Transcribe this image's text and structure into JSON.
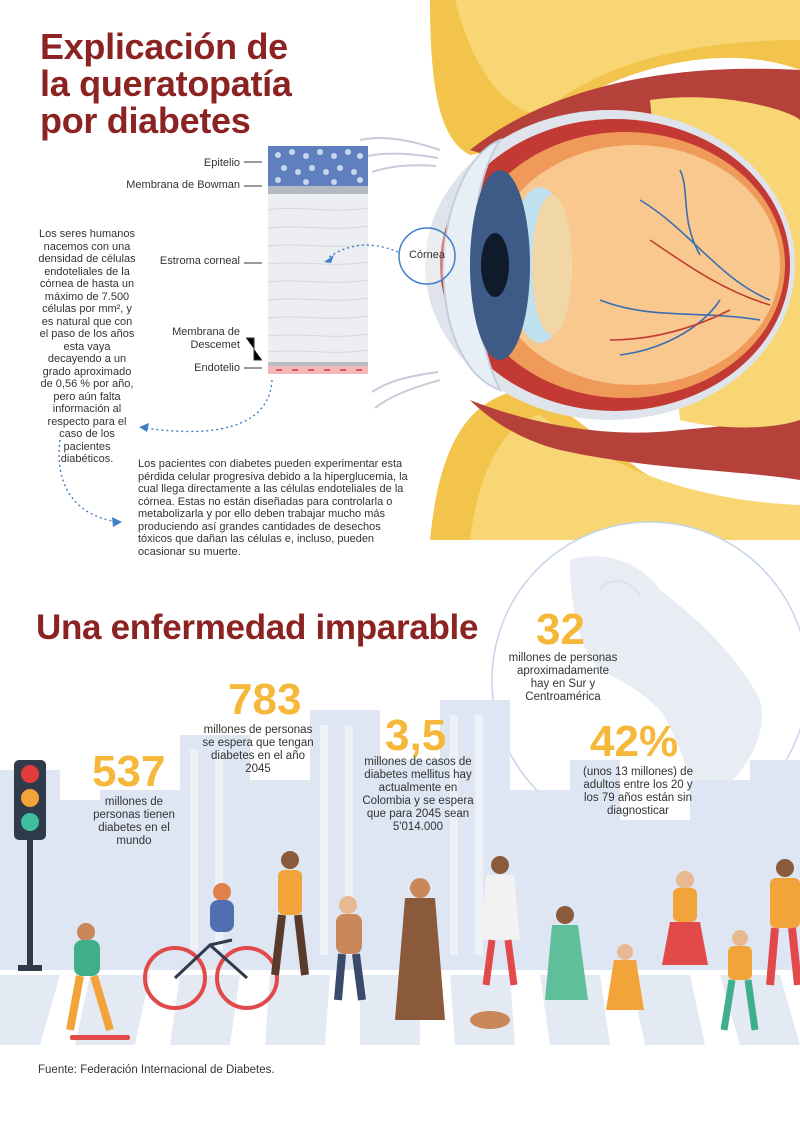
{
  "header": {
    "title": "Explicación de la queratopatía por diabetes"
  },
  "cornea_layers": [
    {
      "label": "Epitelio"
    },
    {
      "label": "Membrana de Bowman"
    },
    {
      "label": "Estroma corneal"
    },
    {
      "label": "Membrana de Descemet"
    },
    {
      "label": "Endotelio"
    }
  ],
  "eye_callout": "Córnea",
  "paragraphs": {
    "cells_density": "Los seres humanos nacemos con una densidad de células endoteliales de la córnea de hasta un máximo de 7.500 células por mm², y es natural que con el paso de los años esta vaya decayendo a un grado aproximado de 0,56 % por año, pero aún falta información al respecto para el caso de los pacientes diabéticos.",
    "diabetes_loss": "Los pacientes con diabetes pueden experimentar esta pérdida celular progresiva debido a la hiperglucemia, la cual llega directamente a las células endoteliales de la córnea. Estas no están diseñadas para controlarla o metabolizarla y por ello deben trabajar mucho más produciendo así grandes cantidades de desechos tóxicos que dañan las células e, incluso, pueden ocasionar su muerte."
  },
  "section2": {
    "title": "Una enfermedad imparable"
  },
  "stats": [
    {
      "value": "537",
      "text": "millones de personas tienen diabetes en el mundo"
    },
    {
      "value": "783",
      "text": "millones de personas se espera que tengan diabetes en el año 2045"
    },
    {
      "value": "3,5",
      "text": "millones de casos de diabetes mellitus hay actualmente en Colombia y se espera que para 2045 sean 5'014.000"
    },
    {
      "value": "32",
      "text": "millones de personas aproximadamente hay en Sur y Centroamérica"
    },
    {
      "value": "42%",
      "text": "(unos 13 millones) de adultos entre los 20 y los 79 años están sin diagnosticar"
    }
  ],
  "source": "Fuente: Federación Internacional de Diabetes.",
  "colors": {
    "title": "#8b2323",
    "accent": "#f6b83a",
    "sky": "#dde6f2"
  }
}
